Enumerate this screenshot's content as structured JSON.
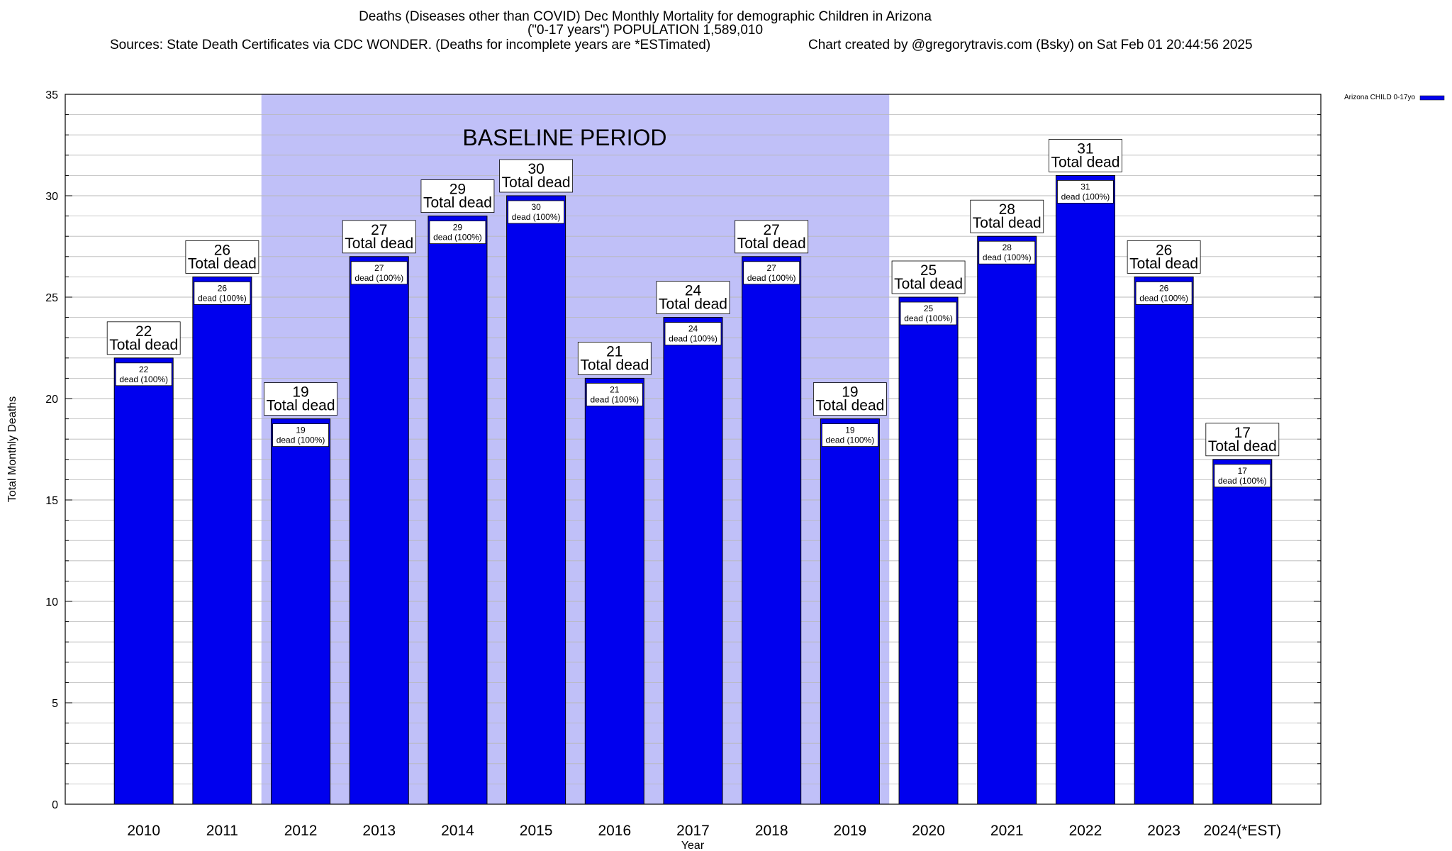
{
  "header": {
    "title": "Deaths (Diseases other than COVID) Dec Monthly Mortality for demographic Children in Arizona",
    "subtitle": "(\"0-17 years\") POPULATION 1,589,010",
    "sources": "Sources: State Death Certificates via CDC WONDER. (Deaths for incomplete years are *ESTimated)",
    "credit": "Chart created by @gregorytravis.com (Bsky) on Sat Feb 01 20:44:56 2025"
  },
  "colors": {
    "bar": "#0000ee",
    "baseline_band": "#c0c0f8",
    "grid": "#b8b8b8",
    "axis": "#000000"
  },
  "chart_data": {
    "type": "bar",
    "title": "Deaths (Diseases other than COVID) Dec Monthly Mortality for demographic Children in Arizona",
    "xlabel": "Year",
    "ylabel": "Total Monthly Deaths",
    "ylim": [
      0,
      35
    ],
    "yticks": [
      0,
      5,
      10,
      15,
      20,
      25,
      30,
      35
    ],
    "grid": true,
    "legend": {
      "placement": "top-right",
      "entries": [
        "Arizona CHILD 0-17yo"
      ]
    },
    "categories": [
      "2010",
      "2011",
      "2012",
      "2013",
      "2014",
      "2015",
      "2016",
      "2017",
      "2018",
      "2019",
      "2020",
      "2021",
      "2022",
      "2023",
      "2024(*EST)"
    ],
    "series": [
      {
        "name": "Arizona CHILD 0-17yo",
        "values": [
          22,
          26,
          19,
          27,
          29,
          30,
          21,
          24,
          27,
          19,
          25,
          28,
          31,
          26,
          17
        ]
      }
    ],
    "total_label": "Total dead",
    "inner_label_suffix": "dead (100%)",
    "baseline": {
      "label": "BASELINE PERIOD",
      "from": "2012",
      "to": "2019"
    }
  }
}
